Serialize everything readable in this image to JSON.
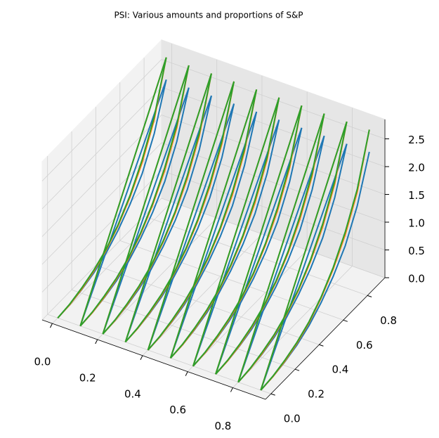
{
  "chart_data": {
    "type": "line3d",
    "title": "PSI: Various amounts and proportions of S&P",
    "x": [
      0,
      0.1,
      0.2,
      0.3,
      0.4,
      0.5,
      0.6,
      0.7,
      0.8,
      0.9
    ],
    "y": [
      0,
      0.1,
      0.2,
      0.3,
      0.4,
      0.5,
      0.6,
      0.7,
      0.8,
      0.9
    ],
    "xlim": [
      -0.045,
      0.945
    ],
    "ylim": [
      -0.045,
      0.945
    ],
    "zlim": [
      0,
      2.85
    ],
    "xticks": [
      {
        "value": 0,
        "label": "0.0"
      },
      0.2,
      0.4,
      0.6,
      0.8
    ],
    "yticks": [
      {
        "value": 0,
        "label": "0.0"
      },
      0.2,
      0.4,
      0.6,
      0.8
    ],
    "zticks": [
      {
        "value": 0,
        "label": "0.0"
      },
      0.5,
      {
        "value": 1,
        "label": "1.0"
      },
      1.5,
      {
        "value": 2,
        "label": "2.0"
      },
      2.5
    ],
    "grid": true,
    "series": [
      {
        "color": "#1f77b4",
        "values": [
          [
            0,
            0.02,
            0.07,
            0.15,
            0.28,
            0.47,
            0.72,
            1.05,
            1.55,
            2.3
          ],
          [
            0,
            0.02,
            0.07,
            0.15,
            0.28,
            0.47,
            0.72,
            1.05,
            1.55,
            2.3
          ],
          [
            0,
            0.02,
            0.07,
            0.15,
            0.28,
            0.47,
            0.72,
            1.05,
            1.55,
            2.3
          ],
          [
            0,
            0.02,
            0.07,
            0.15,
            0.28,
            0.47,
            0.72,
            1.05,
            1.55,
            2.3
          ],
          [
            0,
            0.02,
            0.07,
            0.15,
            0.28,
            0.47,
            0.72,
            1.05,
            1.55,
            2.3
          ],
          [
            0,
            0.02,
            0.07,
            0.15,
            0.28,
            0.47,
            0.72,
            1.05,
            1.55,
            2.3
          ],
          [
            0,
            0.02,
            0.07,
            0.15,
            0.28,
            0.47,
            0.72,
            1.05,
            1.55,
            2.3
          ],
          [
            0,
            0.02,
            0.07,
            0.15,
            0.28,
            0.47,
            0.72,
            1.05,
            1.55,
            2.3
          ],
          [
            0,
            0.02,
            0.07,
            0.15,
            0.28,
            0.47,
            0.72,
            1.05,
            1.55,
            2.3
          ],
          [
            0,
            0.02,
            0.07,
            0.15,
            0.28,
            0.47,
            0.72,
            1.05,
            1.55,
            2.3
          ]
        ]
      },
      {
        "color": "#ff7f0e",
        "values": [
          [
            0,
            0.02,
            0.08,
            0.18,
            0.33,
            0.55,
            0.85,
            1.25,
            1.8,
            2.7
          ],
          [
            0,
            0.02,
            0.08,
            0.18,
            0.33,
            0.55,
            0.85,
            1.25,
            1.8,
            2.7
          ],
          [
            0,
            0.02,
            0.08,
            0.18,
            0.33,
            0.55,
            0.85,
            1.25,
            1.8,
            2.7
          ],
          [
            0,
            0.02,
            0.08,
            0.18,
            0.33,
            0.55,
            0.85,
            1.25,
            1.8,
            2.7
          ],
          [
            0,
            0.02,
            0.08,
            0.18,
            0.33,
            0.55,
            0.85,
            1.25,
            1.8,
            2.7
          ],
          [
            0,
            0.02,
            0.08,
            0.18,
            0.33,
            0.55,
            0.85,
            1.25,
            1.8,
            2.7
          ],
          [
            0,
            0.02,
            0.08,
            0.18,
            0.33,
            0.55,
            0.85,
            1.25,
            1.8,
            2.7
          ],
          [
            0,
            0.02,
            0.08,
            0.18,
            0.33,
            0.55,
            0.85,
            1.25,
            1.8,
            2.7
          ],
          [
            0,
            0.02,
            0.08,
            0.18,
            0.33,
            0.55,
            0.85,
            1.25,
            1.8,
            2.7
          ],
          [
            0,
            0.02,
            0.08,
            0.18,
            0.33,
            0.55,
            0.85,
            1.25,
            1.8,
            2.7
          ]
        ]
      },
      {
        "color": "#2ca02c",
        "values": [
          [
            0,
            0.03,
            0.1,
            0.2,
            0.35,
            0.57,
            0.88,
            1.3,
            1.85,
            2.7
          ],
          [
            0,
            0.03,
            0.1,
            0.2,
            0.35,
            0.57,
            0.88,
            1.3,
            1.85,
            2.7
          ],
          [
            0,
            0.03,
            0.1,
            0.2,
            0.35,
            0.57,
            0.88,
            1.3,
            1.85,
            2.7
          ],
          [
            0,
            0.03,
            0.1,
            0.2,
            0.35,
            0.57,
            0.88,
            1.3,
            1.85,
            2.7
          ],
          [
            0,
            0.03,
            0.1,
            0.2,
            0.35,
            0.57,
            0.88,
            1.3,
            1.85,
            2.7
          ],
          [
            0,
            0.03,
            0.1,
            0.2,
            0.35,
            0.57,
            0.88,
            1.3,
            1.85,
            2.7
          ],
          [
            0,
            0.03,
            0.1,
            0.2,
            0.35,
            0.57,
            0.88,
            1.3,
            1.85,
            2.7
          ],
          [
            0,
            0.03,
            0.1,
            0.2,
            0.35,
            0.57,
            0.88,
            1.3,
            1.85,
            2.7
          ],
          [
            0,
            0.03,
            0.1,
            0.2,
            0.35,
            0.57,
            0.88,
            1.3,
            1.85,
            2.7
          ],
          [
            0,
            0.03,
            0.1,
            0.2,
            0.35,
            0.57,
            0.88,
            1.3,
            1.85,
            2.7
          ]
        ]
      }
    ]
  }
}
